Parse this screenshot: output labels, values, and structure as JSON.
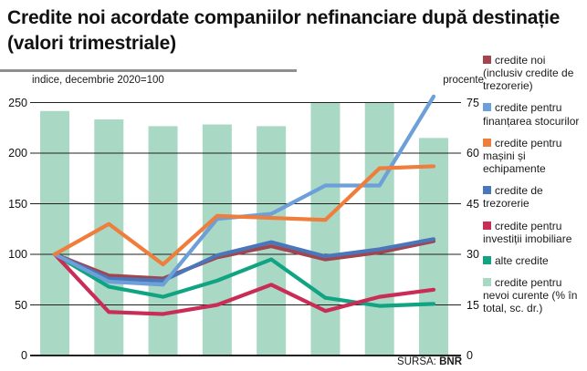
{
  "header": {
    "title": "Credite noi acordate companiilor nefinanciare după destinație (valori trimestriale)"
  },
  "axes": {
    "left_header": "indice, decembrie 2020=100",
    "right_header": "procente"
  },
  "source": {
    "prefix": "SURSA:",
    "name": "BNR"
  },
  "colors": {
    "bar_fill": "#a9d8c5",
    "gridline": "#222222",
    "text": "#1a1a1a"
  },
  "legend": {
    "items": [
      {
        "label": "credite noi (inclusiv credite de trezorerie)",
        "color": "#a2454f"
      },
      {
        "label": "credite pentru finanțarea stocurilor",
        "color": "#6d9fd8"
      },
      {
        "label": "credite pentru mașini și echipamente",
        "color": "#ef7d3c"
      },
      {
        "label": "credite de trezorerie",
        "color": "#4a76ba"
      },
      {
        "label": "credite pentru investiții imobiliare",
        "color": "#c92d56"
      },
      {
        "label": "alte credite",
        "color": "#11a483"
      },
      {
        "label": "credite pentru nevoi curente (% în total, sc. dr.)",
        "color": "#a9d8c5"
      }
    ]
  },
  "chart_data": {
    "type": "combo (bars + lines)",
    "title": "Credite noi acordate companiilor nefinanciare după destinație (valori trimestriale)",
    "x_axis": {
      "points": 8,
      "tick_labels_visible": false,
      "note": "valori trimestriale, decembrie 2020 = 100"
    },
    "left_axis": {
      "label": "indice, decembrie 2020=100",
      "ticks": [
        0,
        50,
        100,
        150,
        200,
        250
      ],
      "range": [
        0,
        265
      ]
    },
    "right_axis": {
      "label": "procente",
      "ticks": [
        0,
        15,
        30,
        45,
        60,
        75
      ],
      "range": [
        0,
        79.5
      ]
    },
    "grid": true,
    "legend_position": "right",
    "bars": {
      "name": "credite pentru nevoi curente (% în total, sc. dr.)",
      "axis": "right",
      "color": "#a9d8c5",
      "values": [
        72.5,
        70,
        68,
        68.5,
        68,
        75,
        75,
        64.5
      ]
    },
    "series": [
      {
        "name": "alte credite",
        "axis": "left",
        "color": "#11a483",
        "values": [
          100,
          68,
          58,
          74,
          95,
          57,
          49,
          51
        ]
      },
      {
        "name": "credite pentru investiții imobiliare",
        "axis": "left",
        "color": "#c92d56",
        "values": [
          100,
          43,
          41,
          50,
          70,
          44,
          58,
          65
        ]
      },
      {
        "name": "credite noi (inclusiv credite de trezorerie)",
        "axis": "left",
        "color": "#a2454f",
        "values": [
          100,
          79,
          76,
          97,
          108,
          95,
          102,
          113
        ]
      },
      {
        "name": "credite de trezorerie",
        "axis": "left",
        "color": "#4a76ba",
        "values": [
          100,
          76,
          74,
          99,
          112,
          98,
          105,
          115
        ]
      },
      {
        "name": "credite pentru finanțarea stocurilor",
        "axis": "left",
        "color": "#6d9fd8",
        "values": [
          100,
          73,
          70,
          135,
          140,
          168,
          168,
          256
        ]
      },
      {
        "name": "credite pentru mașini și echipamente",
        "axis": "left",
        "color": "#ef7d3c",
        "values": [
          100,
          130,
          90,
          138,
          136,
          134,
          185,
          187
        ]
      }
    ]
  }
}
